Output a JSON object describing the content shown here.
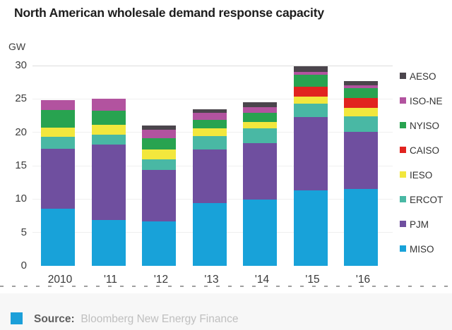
{
  "title": "North American wholesale demand response capacity",
  "chart_data": {
    "type": "bar",
    "stacked": true,
    "title": "North American wholesale demand response capacity",
    "ylabel": "GW",
    "xlabel": "",
    "ylim": [
      0,
      30
    ],
    "yticks": [
      0,
      5,
      10,
      15,
      20,
      25,
      30
    ],
    "grid": true,
    "legend_position": "right",
    "categories": [
      "2010",
      "'11",
      "'12",
      "'13",
      "'14",
      "'15",
      "'16"
    ],
    "series": [
      {
        "name": "MISO",
        "color": "#18a2d9",
        "values": [
          8.6,
          6.9,
          6.7,
          9.4,
          9.9,
          11.3,
          11.5
        ]
      },
      {
        "name": "PJM",
        "color": "#6f4f9f",
        "values": [
          8.9,
          11.3,
          7.7,
          8.0,
          8.5,
          11.0,
          8.6
        ]
      },
      {
        "name": "ERCOT",
        "color": "#49b8a4",
        "values": [
          1.8,
          1.4,
          1.6,
          2.0,
          2.2,
          2.0,
          2.3
        ]
      },
      {
        "name": "IESO",
        "color": "#f2e73d",
        "values": [
          1.4,
          1.5,
          1.4,
          1.2,
          1.0,
          1.1,
          1.3
        ]
      },
      {
        "name": "CAISO",
        "color": "#e1231f",
        "values": [
          0,
          0,
          0,
          0,
          0,
          1.4,
          1.4
        ]
      },
      {
        "name": "NYISO",
        "color": "#28a350",
        "values": [
          2.6,
          2.1,
          1.7,
          1.3,
          1.3,
          1.8,
          1.5
        ]
      },
      {
        "name": "ISO-NE",
        "color": "#b2539f",
        "values": [
          1.5,
          1.8,
          1.3,
          1.0,
          0.9,
          0.5,
          0.4
        ]
      },
      {
        "name": "AESO",
        "color": "#4b454c",
        "values": [
          0,
          0,
          0.6,
          0.6,
          0.7,
          0.8,
          0.7
        ]
      }
    ],
    "legend_order": [
      "AESO",
      "ISO-NE",
      "NYISO",
      "CAISO",
      "IESO",
      "ERCOT",
      "PJM",
      "MISO"
    ]
  },
  "footer": {
    "source_label": "Source:",
    "source_text": "Bloomberg New Energy Finance",
    "icon_color": "#1b9fd9"
  }
}
